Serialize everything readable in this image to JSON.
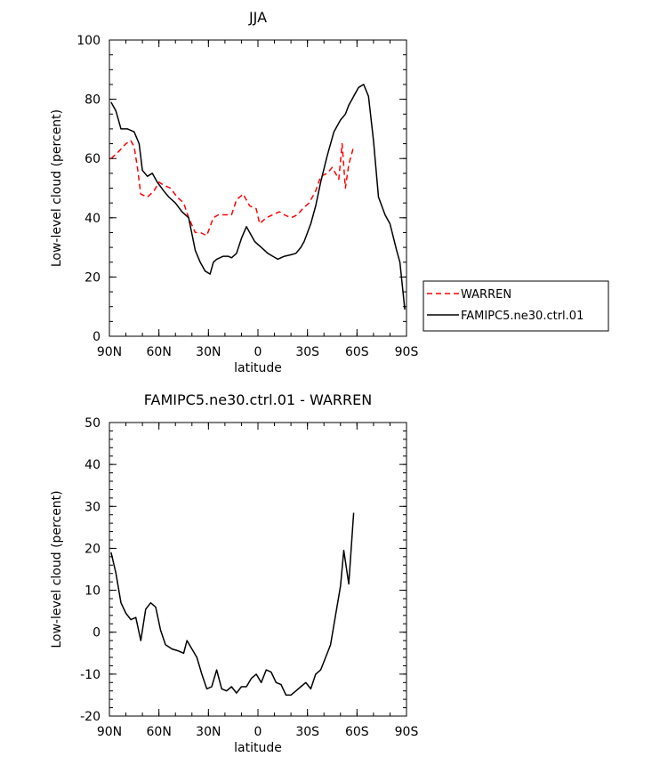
{
  "chart_data": [
    {
      "type": "line",
      "title": "JJA",
      "xlabel": "latitude",
      "ylabel": "Low-level cloud (percent)",
      "xlim": [
        90,
        -90
      ],
      "ylim": [
        0,
        100
      ],
      "xticks": [
        {
          "v": 90,
          "label": "90N"
        },
        {
          "v": 60,
          "label": "60N"
        },
        {
          "v": 30,
          "label": "30N"
        },
        {
          "v": 0,
          "label": "0"
        },
        {
          "v": -30,
          "label": "30S"
        },
        {
          "v": -60,
          "label": "60S"
        },
        {
          "v": -90,
          "label": "90S"
        }
      ],
      "yticks": [
        0,
        20,
        40,
        60,
        80,
        100
      ],
      "legend_position": "right",
      "series": [
        {
          "name": "WARREN",
          "color": "#ff0000",
          "dash": "dashed",
          "x": [
            89,
            85,
            80,
            77,
            75,
            73,
            71,
            67,
            63,
            60,
            57,
            53,
            49,
            45,
            42,
            38,
            35,
            31,
            27,
            24,
            20,
            16,
            13,
            9,
            5,
            1,
            -1,
            -5,
            -9,
            -13,
            -16,
            -20,
            -24,
            -27,
            -31,
            -35,
            -38,
            -42,
            -45,
            -49,
            -51,
            -53,
            -55,
            -58
          ],
          "y": [
            60,
            62,
            65,
            66,
            64,
            57,
            48,
            47,
            49,
            52,
            51,
            50,
            47,
            45,
            40,
            35,
            35,
            34,
            40,
            41,
            41,
            41,
            46,
            48,
            44,
            43,
            38,
            40,
            41,
            42,
            41,
            40,
            41,
            43,
            45,
            49,
            54,
            55,
            57,
            53,
            65,
            50,
            58,
            64
          ]
        },
        {
          "name": "FAMIPC5.ne30.ctrl.01",
          "color": "#000000",
          "dash": "solid",
          "x": [
            89,
            86,
            83,
            79,
            75,
            72,
            70,
            67,
            64,
            61,
            57,
            54,
            50,
            46,
            42,
            38,
            35,
            32,
            29,
            27,
            25,
            21,
            18,
            16,
            13,
            10,
            7,
            4,
            2,
            0,
            -2,
            -4,
            -6,
            -9,
            -12,
            -16,
            -20,
            -23,
            -26,
            -28,
            -32,
            -35,
            -38,
            -42,
            -46,
            -50,
            -53,
            -55,
            -57,
            -59,
            -61,
            -64,
            -67,
            -70,
            -73,
            -77,
            -80,
            -84,
            -86,
            -89
          ],
          "y": [
            79,
            76,
            70,
            70,
            69,
            65,
            56,
            54,
            55,
            52,
            49,
            47,
            45,
            42,
            40,
            29,
            25,
            22,
            21,
            25,
            26,
            27,
            27,
            26.5,
            28,
            33,
            37,
            34,
            32,
            31,
            30,
            29,
            28,
            27,
            26,
            27,
            27.5,
            28,
            30,
            32,
            38,
            44,
            52,
            61,
            69,
            73,
            75,
            78,
            80,
            82,
            84,
            85,
            81,
            66,
            47,
            41,
            38,
            29,
            25,
            9
          ]
        }
      ]
    },
    {
      "type": "line",
      "title": "FAMIPC5.ne30.ctrl.01 - WARREN",
      "xlabel": "latitude",
      "ylabel": "Low-level cloud (percent)",
      "xlim": [
        90,
        -90
      ],
      "ylim": [
        -20,
        50
      ],
      "xticks": [
        {
          "v": 90,
          "label": "90N"
        },
        {
          "v": 60,
          "label": "60N"
        },
        {
          "v": 30,
          "label": "30N"
        },
        {
          "v": 0,
          "label": "0"
        },
        {
          "v": -30,
          "label": "30S"
        },
        {
          "v": -60,
          "label": "60S"
        },
        {
          "v": -90,
          "label": "90S"
        }
      ],
      "yticks": [
        -20,
        -10,
        0,
        10,
        20,
        30,
        40,
        50
      ],
      "series": [
        {
          "color": "#000000",
          "dash": "solid",
          "x": [
            89,
            86,
            83,
            80,
            77,
            74,
            71,
            68,
            65,
            62,
            59,
            56,
            52,
            48,
            45,
            43,
            40,
            37,
            34,
            31,
            28,
            25,
            22,
            19,
            16,
            13,
            10,
            7,
            4,
            1,
            -2,
            -5,
            -8,
            -11,
            -14,
            -17,
            -20,
            -23,
            -26,
            -29,
            -32,
            -35,
            -38,
            -41,
            -44,
            -47,
            -50,
            -52,
            -55,
            -58
          ],
          "y": [
            19,
            14,
            7,
            4.5,
            3,
            3.5,
            -2,
            5.5,
            7,
            6,
            0.5,
            -3,
            -4,
            -4.5,
            -5,
            -2,
            -4,
            -6,
            -10,
            -13.5,
            -13,
            -9,
            -13.5,
            -14,
            -13,
            -14.5,
            -13,
            -13,
            -11,
            -10,
            -12,
            -9,
            -9.5,
            -12,
            -12.5,
            -15,
            -15,
            -14,
            -13,
            -12,
            -13.5,
            -10,
            -9,
            -6,
            -3,
            4,
            11,
            19.5,
            11.5,
            28.5
          ]
        }
      ]
    }
  ],
  "legend": {
    "items": [
      {
        "label": "WARREN",
        "color": "#ff0000",
        "dash": "dashed"
      },
      {
        "label": "FAMIPC5.ne30.ctrl.01",
        "color": "#000000",
        "dash": "solid"
      }
    ]
  }
}
